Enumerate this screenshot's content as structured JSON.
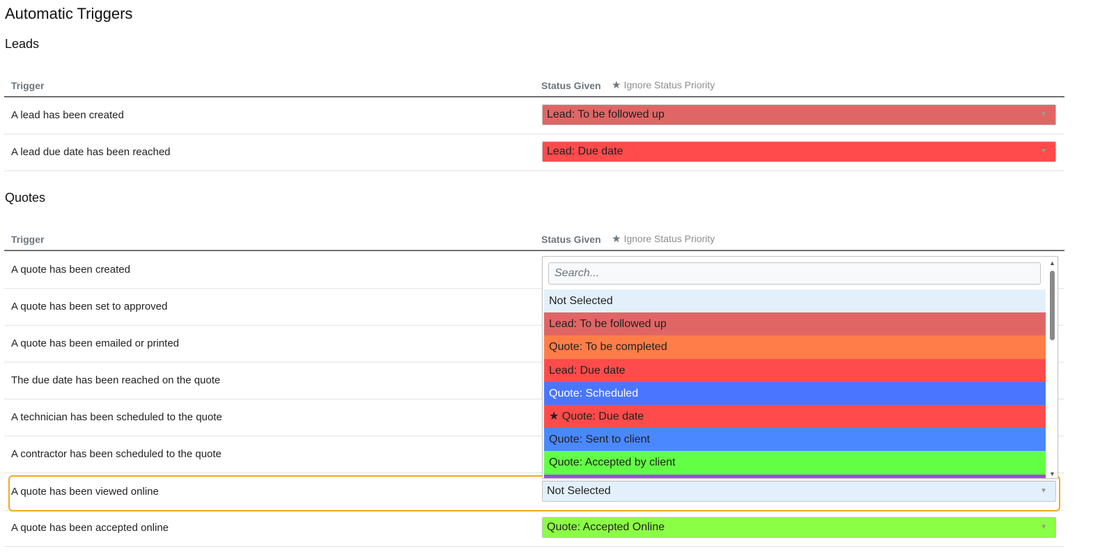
{
  "page_title": "Automatic Triggers",
  "header": {
    "trigger": "Trigger",
    "status_given": "Status Given",
    "ignore_priority": "Ignore Status Priority",
    "star_icon": "★"
  },
  "leads": {
    "title": "Leads",
    "rows": [
      {
        "label": "A lead has been created",
        "value": "Lead: To be followed up",
        "color": "#e06666"
      },
      {
        "label": "A lead due date has been reached",
        "value": "Lead: Due date",
        "color": "#ff4b4b"
      }
    ]
  },
  "quotes": {
    "title": "Quotes",
    "rows": [
      {
        "label": "A quote has been created"
      },
      {
        "label": "A quote has been set to approved"
      },
      {
        "label": "A quote has been emailed or printed"
      },
      {
        "label": "The due date has been reached on the quote"
      },
      {
        "label": "A technician has been scheduled to the quote"
      },
      {
        "label": "A contractor has been scheduled to the quote"
      },
      {
        "label": "A quote has been viewed online",
        "value": "Not Selected",
        "color": "#e3f0fb"
      },
      {
        "label": "A quote has been accepted online",
        "value": "Quote: Accepted Online",
        "color": "#8aff45"
      }
    ]
  },
  "caret": "▼",
  "dropdown": {
    "search_placeholder": "Search...",
    "options": [
      {
        "label": "Not Selected",
        "color": "#e3f0fb",
        "text_color": "#222"
      },
      {
        "label": "Lead: To be followed up",
        "color": "#e06666",
        "text_color": "#222"
      },
      {
        "label": "Quote: To be completed",
        "color": "#ff7d48",
        "text_color": "#222"
      },
      {
        "label": "Lead: Due date",
        "color": "#ff4b4b",
        "text_color": "#222"
      },
      {
        "label": "Quote: Scheduled",
        "color": "#4a76ff",
        "text_color": "#ffffff"
      },
      {
        "label": "★ Quote: Due date",
        "color": "#ff4b4b",
        "text_color": "#222"
      },
      {
        "label": "Quote: Sent to client",
        "color": "#4a88ff",
        "text_color": "#222"
      },
      {
        "label": "Quote: Accepted by client",
        "color": "#62ff45",
        "text_color": "#222"
      },
      {
        "label": "",
        "color": "#9b4fd6",
        "text_color": "#222"
      }
    ],
    "scroll_up": "▲",
    "scroll_down": "▼"
  }
}
